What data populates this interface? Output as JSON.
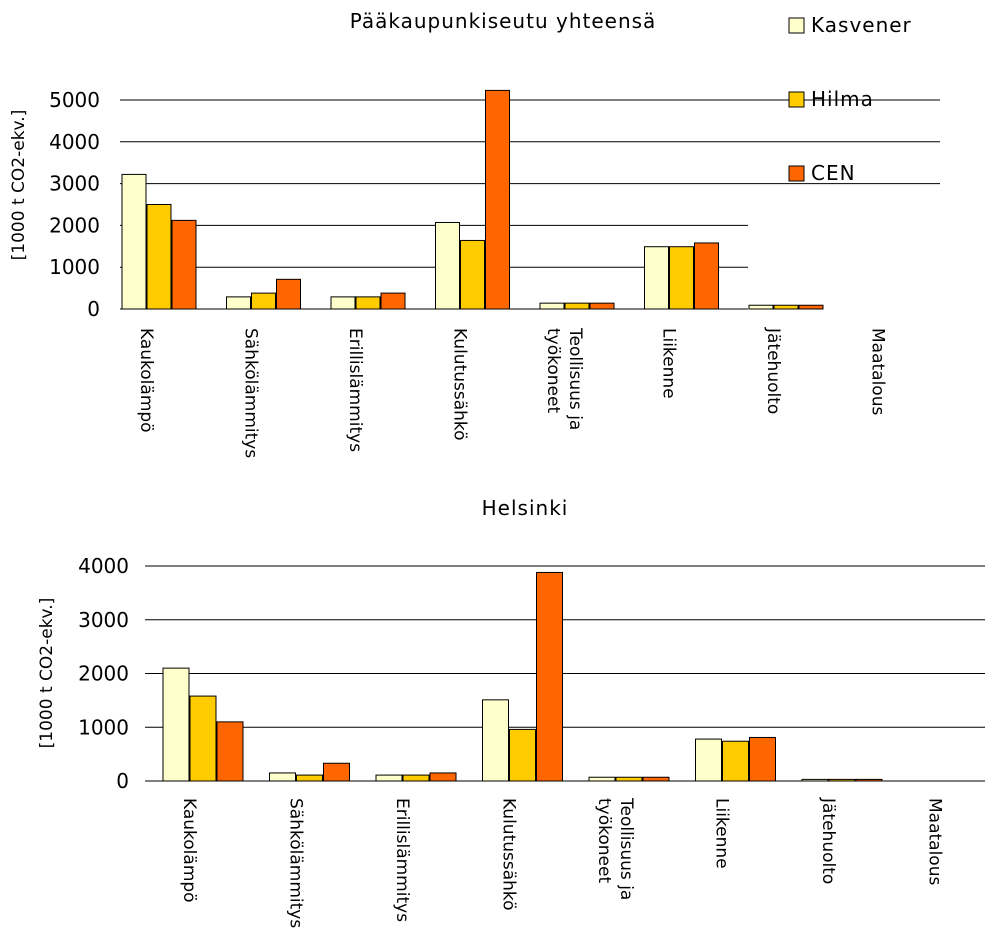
{
  "legend": [
    {
      "label": "Kasvener",
      "color": "#ffffcc"
    },
    {
      "label": "Hilma",
      "color": "#ffcc00"
    },
    {
      "label": "CEN",
      "color": "#ff6600"
    }
  ],
  "chart_data": [
    {
      "type": "bar",
      "title": "Pääkaupunkiseutu yhteensä",
      "ylabel": "[1000 t CO2-ekv.]",
      "xlabel": "",
      "categories": [
        "Kaukolämpö",
        "Sähkölämmitys",
        "Erillislämmitys",
        "Kulutussähkö",
        [
          "Teollisuus ja",
          "työkoneet"
        ],
        "Liikenne",
        "Jätehuolto",
        "Maatalous"
      ],
      "series": [
        {
          "name": "Kasvener",
          "values": [
            3220,
            290,
            290,
            2070,
            140,
            1490,
            90,
            0
          ]
        },
        {
          "name": "Hilma",
          "values": [
            2500,
            380,
            290,
            1640,
            140,
            1490,
            90,
            0
          ]
        },
        {
          "name": "CEN",
          "values": [
            2120,
            710,
            380,
            5230,
            140,
            1580,
            90,
            0
          ]
        }
      ],
      "ylim": [
        0,
        5000
      ],
      "yticks": [
        "0",
        "1000",
        "2000",
        "3000",
        "4000",
        "5000"
      ],
      "grid": true,
      "legend_position": "top-right"
    },
    {
      "type": "bar",
      "title": "Helsinki",
      "ylabel": "[1000 t CO2-ekv.]",
      "xlabel": "",
      "categories": [
        "Kaukolämpö",
        "Sähkölämmitys",
        "Erillislämmitys",
        "Kulutussähkö",
        [
          "Teollisuus ja",
          "työkoneet"
        ],
        "Liikenne",
        "Jätehuolto",
        "Maatalous"
      ],
      "series": [
        {
          "name": "Kasvener",
          "values": [
            2100,
            150,
            110,
            1510,
            70,
            780,
            30,
            0
          ]
        },
        {
          "name": "Hilma",
          "values": [
            1580,
            110,
            110,
            960,
            70,
            740,
            30,
            0
          ]
        },
        {
          "name": "CEN",
          "values": [
            1100,
            330,
            150,
            3880,
            70,
            810,
            30,
            0
          ]
        }
      ],
      "ylim": [
        0,
        4000
      ],
      "yticks": [
        "0",
        "1000",
        "2000",
        "3000",
        "4000"
      ],
      "grid": true,
      "legend_position": "none"
    }
  ]
}
